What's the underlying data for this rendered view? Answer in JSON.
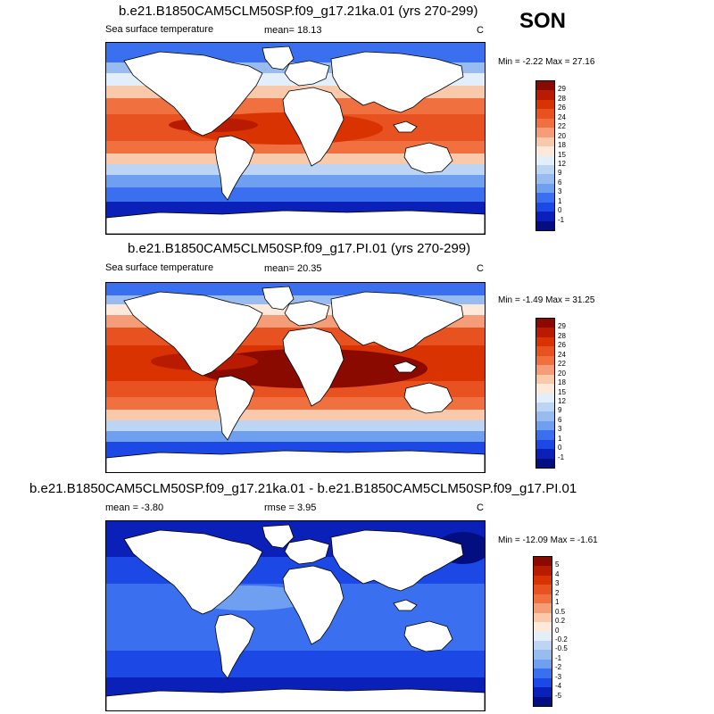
{
  "season": "SON",
  "units": "C",
  "panels": [
    {
      "title": "b.e21.B1850CAM5CLM50SP.f09_g17.21ka.01 (yrs 270-299)",
      "subtitle": "Sea surface temperature",
      "mean_text": "mean=  18.13",
      "units": "C",
      "minmax": "Min =  -2.22 Max =  27.16",
      "variant": "lgm"
    },
    {
      "title": "b.e21.B1850CAM5CLM50SP.f09_g17.PI.01 (yrs 270-299)",
      "subtitle": "Sea surface temperature",
      "mean_text": "mean=  20.35",
      "units": "C",
      "minmax": "Min =  -1.49 Max =  31.25",
      "variant": "pi"
    },
    {
      "title": "b.e21.B1850CAM5CLM50SP.f09_g17.21ka.01 - b.e21.B1850CAM5CLM50SP.f09_g17.PI.01",
      "mean_text": "mean =  -3.80",
      "rmse_text": "rmse =   3.95",
      "units": "C",
      "minmax": "Min = -12.09 Max =  -1.61",
      "variant": "diff"
    }
  ],
  "colorbar_abs": {
    "labels": [
      "29",
      "28",
      "26",
      "24",
      "22",
      "20",
      "18",
      "15",
      "12",
      "9",
      "6",
      "3",
      "1",
      "0",
      "-1"
    ],
    "colors": [
      "#8a0a00",
      "#b81b00",
      "#d83300",
      "#e85220",
      "#f07040",
      "#f59d78",
      "#f9c9ac",
      "#fde8dc",
      "#e3eefb",
      "#bcd5f5",
      "#98bcf0",
      "#6e9ff0",
      "#3a70ef",
      "#1c49e6",
      "#0a20b8",
      "#030e80"
    ]
  },
  "colorbar_diff": {
    "labels": [
      "5",
      "4",
      "3",
      "2",
      "1",
      "0.5",
      "0.2",
      "0",
      "-0.2",
      "-0.5",
      "-1",
      "-2",
      "-3",
      "-4",
      "-5"
    ],
    "colors": [
      "#8a0a00",
      "#b81b00",
      "#d83300",
      "#e85220",
      "#f07040",
      "#f59d78",
      "#f9c9ac",
      "#fde8dc",
      "#e3eefb",
      "#bcd5f5",
      "#98bcf0",
      "#6e9ff0",
      "#3a70ef",
      "#1c49e6",
      "#0a20b8",
      "#030e80"
    ]
  }
}
